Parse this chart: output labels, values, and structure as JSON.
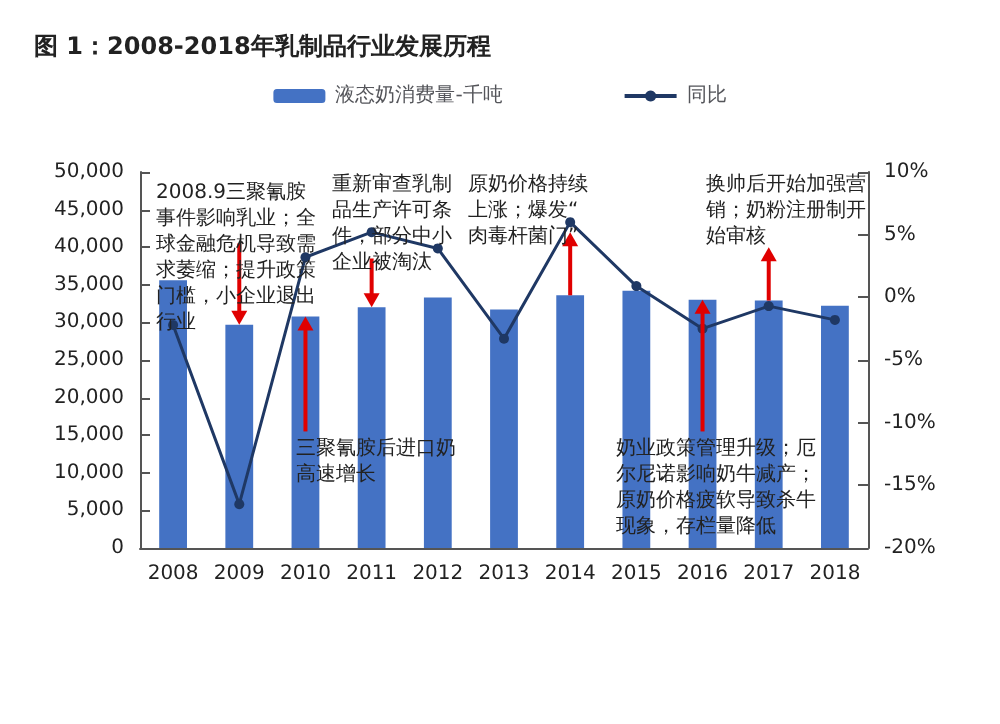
{
  "chart_data": {
    "type": "bar",
    "title": "图 1：2008-2018年乳制品行业发展历程",
    "categories": [
      "2008",
      "2009",
      "2010",
      "2011",
      "2012",
      "2013",
      "2014",
      "2015",
      "2016",
      "2017",
      "2018"
    ],
    "series": [
      {
        "name": "液态奶消费量-千吨",
        "color": "#4472c4",
        "values": [
          35600,
          29700,
          30800,
          32000,
          33300,
          31700,
          33600,
          34200,
          33000,
          32900,
          32200
        ]
      },
      {
        "name": "同比",
        "type": "line",
        "axis": "y2",
        "color": "#1f3864",
        "values": [
          -2.2,
          -16.5,
          3.2,
          5.2,
          3.9,
          -3.3,
          6.0,
          0.9,
          -2.5,
          -0.7,
          -1.8
        ]
      }
    ],
    "ylim": [
      0,
      50000
    ],
    "yticks": [
      0,
      {
        "value": 5000,
        "label": "5,000"
      },
      {
        "value": 10000,
        "label": "10,000"
      },
      {
        "value": 15000,
        "label": "15,000"
      },
      {
        "value": 20000,
        "label": "20,000"
      },
      {
        "value": 25000,
        "label": "25,000"
      },
      {
        "value": 30000,
        "label": "30,000"
      },
      {
        "value": 35000,
        "label": "35,000"
      },
      {
        "value": 40000,
        "label": "40,000"
      },
      {
        "value": 45000,
        "label": "45,000"
      },
      {
        "value": 50000,
        "label": "50,000"
      }
    ],
    "y2lim": [
      -20,
      10
    ],
    "y2ticks": [
      {
        "value": -20,
        "label": "-20%"
      },
      {
        "value": -15,
        "label": "-15%"
      },
      {
        "value": -10,
        "label": "-10%"
      },
      {
        "value": -5,
        "label": "-5%"
      },
      {
        "value": 0,
        "label": "0%"
      },
      {
        "value": 5,
        "label": "5%"
      },
      {
        "value": 10,
        "label": "10%"
      }
    ],
    "legend": "top",
    "marker": "circle",
    "grid": false,
    "annotations": [
      {
        "text": "2008.9三聚氰胺事件影响乳业；全球金融危机导致需求萎缩；提升政策门槛，小企业退出行业",
        "x": "2009",
        "y": 29700
      },
      {
        "text": "重新审查乳制品生产许可条件，部分中小企业被淘汰",
        "x": "2011",
        "y": 32000
      },
      {
        "text": "原奶价格持续上涨；爆发“肉毒杆菌门”",
        "x": "2014",
        "y": 33600
      },
      {
        "text": "换帅后开始加强营销；奶粉注册制开始审核",
        "x": "2017",
        "y": 32900
      },
      {
        "text": "三聚氰胺后进口奶高速增长",
        "x": "2010",
        "y": 30800
      },
      {
        "text": "奶业政策管理升级；厄尔尼诺影响奶牛减产；原奶价格疲软导致杀牛现象，存栏量降低",
        "x": "2016",
        "y": 33000
      }
    ]
  }
}
